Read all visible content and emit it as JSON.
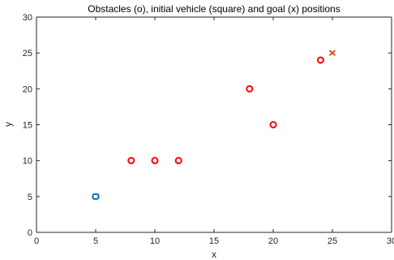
{
  "chart_data": {
    "type": "scatter",
    "title": "Obstacles (o), initial vehicle (square) and goal (x) positions",
    "xlabel": "x",
    "ylabel": "y",
    "xlim": [
      0,
      30
    ],
    "ylim": [
      0,
      30
    ],
    "xticks": [
      0,
      5,
      10,
      15,
      20,
      25,
      30
    ],
    "yticks": [
      0,
      5,
      10,
      15,
      20,
      25,
      30
    ],
    "grid": false,
    "series": [
      {
        "marker": "circle",
        "color": "#ff0000",
        "points": [
          {
            "x": 8,
            "y": 10
          },
          {
            "x": 10,
            "y": 10
          },
          {
            "x": 12,
            "y": 10
          },
          {
            "x": 18,
            "y": 20
          },
          {
            "x": 20,
            "y": 15
          },
          {
            "x": 24,
            "y": 24
          }
        ]
      },
      {
        "marker": "square",
        "color": "#0072bd",
        "points": [
          {
            "x": 5,
            "y": 5
          }
        ]
      },
      {
        "marker": "x",
        "color": "#d95319",
        "points": [
          {
            "x": 25,
            "y": 25
          }
        ]
      }
    ]
  }
}
